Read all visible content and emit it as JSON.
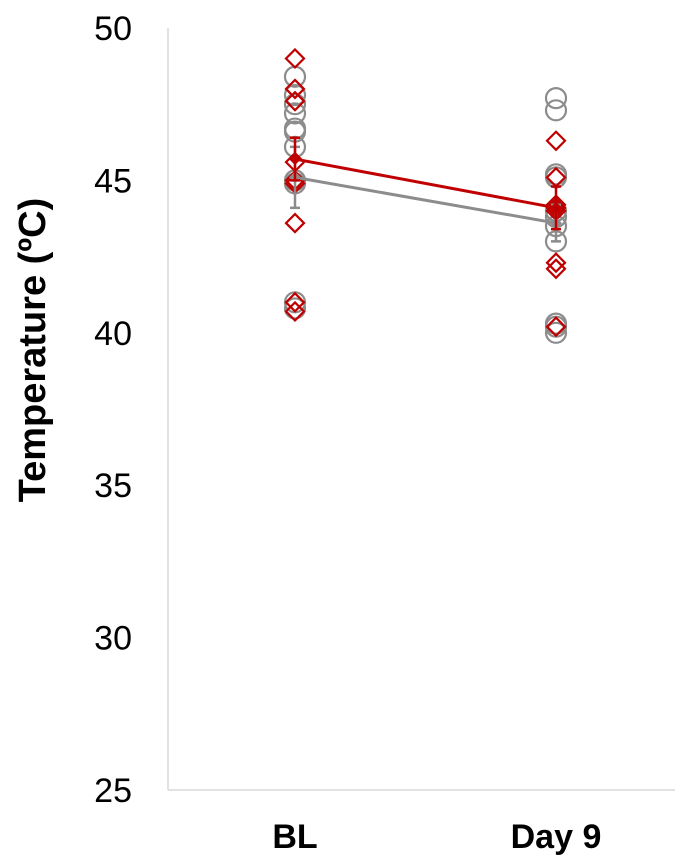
{
  "chart_data": {
    "type": "scatter",
    "ylabel": "Temperature (ºC)",
    "xlabel": "",
    "categories": [
      "BL",
      "Day 9"
    ],
    "ylim": [
      25,
      50
    ],
    "yticks": [
      "25",
      "30",
      "35",
      "40",
      "45",
      "50"
    ],
    "grid": false,
    "series": [
      {
        "marker": "circle",
        "color": "#8c8c8c",
        "mean": [
          45.1,
          43.6
        ],
        "error": [
          1.0,
          0.6
        ],
        "points": [
          [
            48.4,
            47.8,
            47.5,
            47.2,
            46.7,
            46.6,
            46.1,
            45.0,
            44.9,
            41.0,
            40.8
          ],
          [
            47.7,
            47.3,
            45.2,
            45.1,
            44.0,
            43.8,
            43.5,
            43.0,
            40.3,
            40.2,
            40.0
          ]
        ]
      },
      {
        "marker": "diamond",
        "color": "#c00000",
        "mean": [
          45.7,
          44.1
        ],
        "error": [
          0.7,
          0.7
        ],
        "points": [
          [
            49.0,
            48.0,
            47.6,
            45.6,
            45.0,
            44.9,
            43.6,
            41.0,
            40.7
          ],
          [
            46.3,
            45.1,
            44.2,
            44.1,
            44.0,
            42.3,
            42.1,
            40.2
          ]
        ]
      }
    ]
  }
}
